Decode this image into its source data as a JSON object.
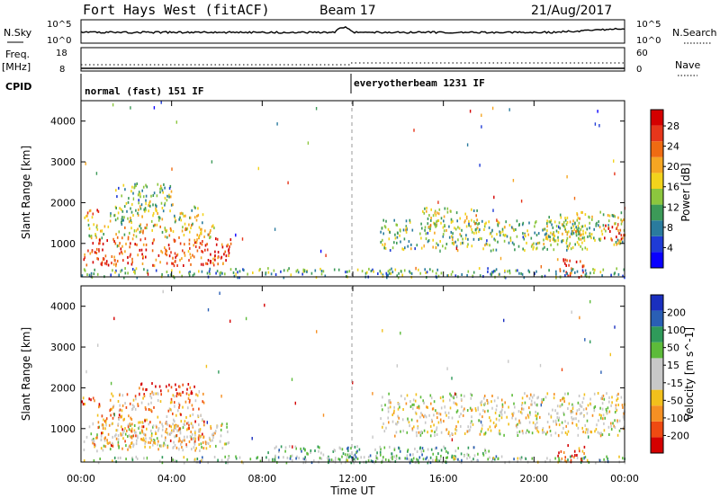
{
  "header": {
    "station": "Fort Hays West (fitACF)",
    "beam": "Beam 17",
    "date": "21/Aug/2017"
  },
  "strip_nsky": {
    "label_left": "N.Sky",
    "label_right": "N.Search",
    "ticks_left": [
      "10^5",
      "10^0"
    ],
    "ticks_right": [
      "10^5",
      "10^0"
    ]
  },
  "strip_freq": {
    "label_left_1": "Freq.",
    "label_left_2": "[MHz]",
    "label_right": "Nave",
    "ticks_left": [
      "18",
      "8"
    ],
    "ticks_right": [
      "60",
      "0"
    ]
  },
  "cpid": {
    "label": "CPID",
    "mode_1": "normal (fast) 151 IF",
    "mode_2": "everyotherbeam 1231 IF"
  },
  "colors": {
    "power": [
      "#0a00ff",
      "#1f3bd6",
      "#2a7b9e",
      "#3c9a58",
      "#8cc63e",
      "#f2d31c",
      "#f5a623",
      "#ef6b12",
      "#e6361b",
      "#d40000"
    ],
    "velocity": [
      "#d40000",
      "#ef4a12",
      "#f59023",
      "#f2c01c",
      "#c8c8c8",
      "#c8c8c8",
      "#5dbb3a",
      "#2f9a5a",
      "#2a5fb5",
      "#1a2fbf"
    ]
  },
  "chart_data": [
    {
      "type": "heatmap",
      "name": "power",
      "ylabel": "Slant Range [km]",
      "xlabel": "Time UT",
      "xticks": [
        "00:00",
        "04:00",
        "08:00",
        "12:00",
        "16:00",
        "20:00",
        "00:00"
      ],
      "yticks": [
        "1000",
        "2000",
        "3000",
        "4000"
      ],
      "ylim": [
        180,
        4500
      ],
      "xlim_hours": [
        0,
        24
      ],
      "colorbar_label": "Power [dB]",
      "colorbar_ticks": [
        "4",
        "8",
        "12",
        "16",
        "20",
        "24",
        "28"
      ],
      "regions": [
        {
          "t0": 0.1,
          "t1": 6.6,
          "r0": 480,
          "r1": 1150,
          "level": 0.82
        },
        {
          "t0": 0.2,
          "t1": 6.0,
          "r0": 1150,
          "r1": 1500,
          "level": 0.55
        },
        {
          "t0": 0.0,
          "t1": 0.8,
          "r0": 1550,
          "r1": 1850,
          "level": 0.7
        },
        {
          "t0": 1.2,
          "t1": 5.4,
          "r0": 1500,
          "r1": 2000,
          "level": 0.45
        },
        {
          "t0": 1.5,
          "t1": 4.0,
          "r0": 2000,
          "r1": 2500,
          "level": 0.4
        },
        {
          "t0": 13.2,
          "t1": 22.5,
          "r0": 850,
          "r1": 1600,
          "level": 0.42
        },
        {
          "t0": 15.0,
          "t1": 17.5,
          "r0": 1400,
          "r1": 1900,
          "level": 0.5
        },
        {
          "t0": 20.5,
          "t1": 24.0,
          "r0": 1000,
          "r1": 1800,
          "level": 0.48
        },
        {
          "t0": 23.0,
          "t1": 24.0,
          "r0": 1100,
          "r1": 1500,
          "level": 0.85
        },
        {
          "t0": 21.0,
          "t1": 22.2,
          "r0": 200,
          "r1": 650,
          "level": 0.9
        },
        {
          "t0": 0.0,
          "t1": 24.0,
          "r0": 190,
          "r1": 420,
          "level": 0.35
        }
      ]
    },
    {
      "type": "heatmap",
      "name": "velocity",
      "ylabel": "Slant Range [km]",
      "xlabel": "Time UT",
      "xticks": [
        "00:00",
        "04:00",
        "08:00",
        "12:00",
        "16:00",
        "20:00",
        "00:00"
      ],
      "yticks": [
        "1000",
        "2000",
        "3000",
        "4000"
      ],
      "ylim": [
        180,
        4500
      ],
      "xlim_hours": [
        0,
        24
      ],
      "colorbar_label": "Velocity [m s^-1]",
      "colorbar_ticks": [
        "200",
        "100",
        "50",
        "15",
        "-15",
        "-50",
        "-100",
        "-200"
      ],
      "regions": [
        {
          "t0": 0.1,
          "t1": 6.6,
          "r0": 480,
          "r1": 1150,
          "level": 0.45
        },
        {
          "t0": 0.5,
          "t1": 5.5,
          "r0": 600,
          "r1": 1400,
          "level": 0.3
        },
        {
          "t0": 0.0,
          "t1": 0.8,
          "r0": 1550,
          "r1": 1850,
          "level": 0.15
        },
        {
          "t0": 2.5,
          "t1": 5.0,
          "r0": 1850,
          "r1": 2150,
          "level": 0.05
        },
        {
          "t0": 1.2,
          "t1": 5.4,
          "r0": 1450,
          "r1": 1900,
          "level": 0.3
        },
        {
          "t0": 13.2,
          "t1": 24.0,
          "r0": 850,
          "r1": 1900,
          "level": 0.45
        },
        {
          "t0": 21.0,
          "t1": 22.2,
          "r0": 200,
          "r1": 650,
          "level": 0.1
        },
        {
          "t0": 8.0,
          "t1": 18.0,
          "r0": 190,
          "r1": 600,
          "level": 0.65
        },
        {
          "t0": 0.0,
          "t1": 24.0,
          "r0": 190,
          "r1": 350,
          "level": 0.6
        }
      ]
    }
  ]
}
